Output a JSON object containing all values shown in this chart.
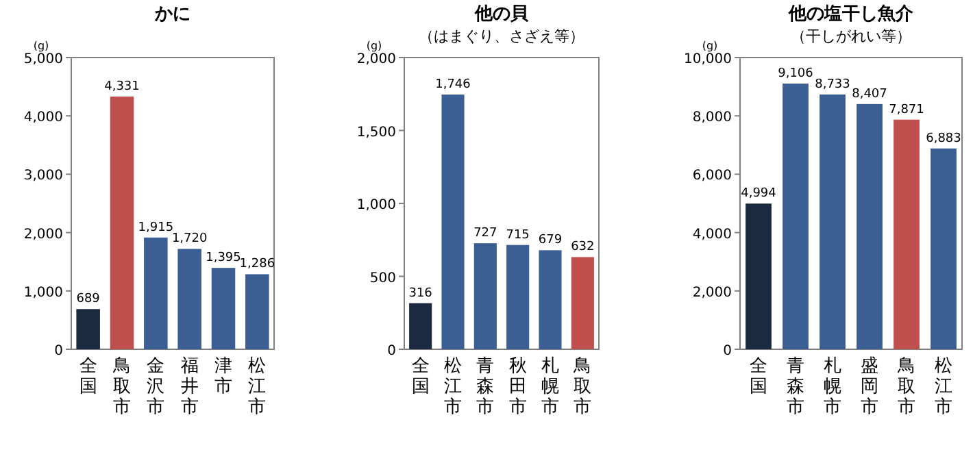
{
  "chart_data": [
    {
      "type": "bar",
      "title": "かに",
      "ylabel": "(g)",
      "categories": [
        "全国",
        "鳥取市",
        "金沢市",
        "福井市",
        "津市",
        "松江市"
      ],
      "values": [
        689,
        4331,
        1915,
        1720,
        1395,
        1286
      ],
      "colors": [
        "#1b2a41",
        "#c0504d",
        "#3b5f93",
        "#3b5f93",
        "#3b5f93",
        "#3b5f93"
      ],
      "ylim": [
        0,
        5000
      ],
      "yticks": [
        {
          "value": 0,
          "label": "0"
        },
        {
          "value": 1000,
          "label": "1,000"
        },
        {
          "value": 2000,
          "label": "2,000"
        },
        {
          "value": 3000,
          "label": "3,000"
        },
        {
          "value": 4000,
          "label": "4,000"
        },
        {
          "value": 5000,
          "label": "5,000"
        }
      ],
      "value_labels": [
        "689",
        "4,331",
        "1,915",
        "1,720",
        "1,395",
        "1,286"
      ]
    },
    {
      "type": "bar",
      "title": "他の貝",
      "subtitle": "（はまぐり、さざえ等）",
      "ylabel": "(g)",
      "categories": [
        "全国",
        "松江市",
        "青森市",
        "秋田市",
        "札幌市",
        "鳥取市"
      ],
      "values": [
        316,
        1746,
        727,
        715,
        679,
        632
      ],
      "colors": [
        "#1b2a41",
        "#3b5f93",
        "#3b5f93",
        "#3b5f93",
        "#3b5f93",
        "#c0504d"
      ],
      "ylim": [
        0,
        2000
      ],
      "yticks": [
        {
          "value": 0,
          "label": "0"
        },
        {
          "value": 500,
          "label": "500"
        },
        {
          "value": 1000,
          "label": "1,000"
        },
        {
          "value": 1500,
          "label": "1,500"
        },
        {
          "value": 2000,
          "label": "2,000"
        }
      ],
      "value_labels": [
        "316",
        "1,746",
        "727",
        "715",
        "679",
        "632"
      ]
    },
    {
      "type": "bar",
      "title": "他の塩干し魚介",
      "subtitle": "（干しがれい等）",
      "ylabel": "(g)",
      "categories": [
        "全国",
        "青森市",
        "札幌市",
        "盛岡市",
        "鳥取市",
        "松江市"
      ],
      "values": [
        4994,
        9106,
        8733,
        8407,
        7871,
        6883
      ],
      "colors": [
        "#1b2a41",
        "#3b5f93",
        "#3b5f93",
        "#3b5f93",
        "#c0504d",
        "#3b5f93"
      ],
      "ylim": [
        0,
        10000
      ],
      "yticks": [
        {
          "value": 0,
          "label": "0"
        },
        {
          "value": 2000,
          "label": "2,000"
        },
        {
          "value": 4000,
          "label": "4,000"
        },
        {
          "value": 6000,
          "label": "6,000"
        },
        {
          "value": 8000,
          "label": "8,000"
        },
        {
          "value": 10000,
          "label": "10,000"
        }
      ],
      "value_labels": [
        "4,994",
        "9,106",
        "8,733",
        "8,407",
        "7,871",
        "6,883"
      ]
    }
  ]
}
